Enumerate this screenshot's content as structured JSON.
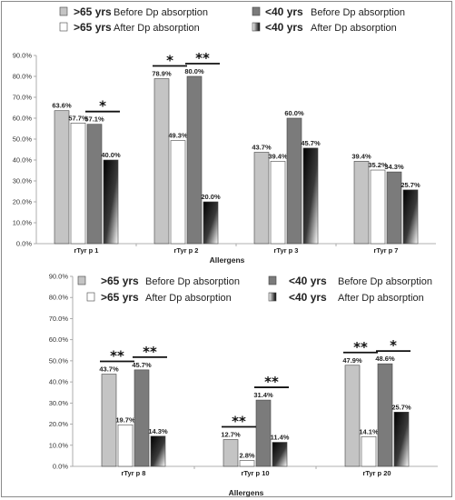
{
  "chart_data": [
    {
      "type": "bar",
      "categories": [
        "rTyr p 1",
        "rTyr p 2",
        "rTyr p 3",
        "rTyr p 7"
      ],
      "series": [
        {
          "name": "Before Dp absorption",
          "group": ">65 yrs",
          "values": [
            63.6,
            78.9,
            43.7,
            39.4
          ],
          "labels": [
            "63.6%",
            "78.9%",
            "43.7%",
            "39.4%"
          ]
        },
        {
          "name": "After Dp absorption",
          "group": ">65 yrs",
          "values": [
            57.7,
            49.3,
            39.4,
            35.2
          ],
          "labels": [
            "57.7%",
            "49.3%",
            "39.4%",
            "35.2%"
          ]
        },
        {
          "name": "Before Dp absorption",
          "group": "<40 yrs",
          "values": [
            57.1,
            80.0,
            60.0,
            34.3
          ],
          "labels": [
            "57.1%",
            "80.0%",
            "60.0%",
            "34.3%"
          ]
        },
        {
          "name": "After Dp absorption",
          "group": "<40 yrs",
          "values": [
            40.0,
            20.0,
            45.7,
            25.7
          ],
          "labels": [
            "40.0%",
            "20.0%",
            "45.7%",
            "25.7%"
          ]
        }
      ],
      "xlabel": "Allergens",
      "ylabel": "",
      "ylim": [
        0,
        90
      ],
      "yticks": [
        "0.0%",
        "10.0%",
        "20.0%",
        "30.0%",
        "40.0%",
        "50.0%",
        "60.0%",
        "70.0%",
        "80.0%",
        "90.0%"
      ],
      "grid": false,
      "legend": "top",
      "significance": [
        {
          "category_index": 0,
          "from_series": 2,
          "to_series": 3,
          "stars": "*"
        },
        {
          "category_index": 1,
          "from_series": 0,
          "to_series": 1,
          "stars": "*"
        },
        {
          "category_index": 1,
          "from_series": 2,
          "to_series": 3,
          "stars": "**"
        }
      ]
    },
    {
      "type": "bar",
      "categories": [
        "rTyr p 8",
        "rTyr p 10",
        "rTyr p 20"
      ],
      "series": [
        {
          "name": "Before Dp absorption",
          "group": ">65 yrs",
          "values": [
            43.7,
            12.7,
            47.9
          ],
          "labels": [
            "43.7%",
            "12.7%",
            "47.9%"
          ]
        },
        {
          "name": "After Dp absorption",
          "group": ">65 yrs",
          "values": [
            19.7,
            2.8,
            14.1
          ],
          "labels": [
            "19.7%",
            "2.8%",
            "14.1%"
          ]
        },
        {
          "name": "Before Dp absorption",
          "group": "<40 yrs",
          "values": [
            45.7,
            31.4,
            48.6
          ],
          "labels": [
            "45.7%",
            "31.4%",
            "48.6%"
          ]
        },
        {
          "name": "After Dp absorption",
          "group": "<40 yrs",
          "values": [
            14.3,
            11.4,
            25.7
          ],
          "labels": [
            "14.3%",
            "11.4%",
            "25.7%"
          ]
        }
      ],
      "xlabel": "Allergens",
      "ylabel": "",
      "ylim": [
        0,
        90
      ],
      "yticks": [
        "0.0%",
        "10.0%",
        "20.0%",
        "30.0%",
        "40.0%",
        "50.0%",
        "60.0%",
        "70.0%",
        "80.0%",
        "90.0%"
      ],
      "grid": false,
      "legend": "top",
      "significance": [
        {
          "category_index": 0,
          "from_series": 0,
          "to_series": 1,
          "stars": "**"
        },
        {
          "category_index": 0,
          "from_series": 2,
          "to_series": 3,
          "stars": "**"
        },
        {
          "category_index": 1,
          "from_series": 0,
          "to_series": 1,
          "stars": "**"
        },
        {
          "category_index": 1,
          "from_series": 2,
          "to_series": 3,
          "stars": "**"
        },
        {
          "category_index": 2,
          "from_series": 0,
          "to_series": 1,
          "stars": "**"
        },
        {
          "category_index": 2,
          "from_series": 2,
          "to_series": 3,
          "stars": "*"
        }
      ]
    }
  ],
  "legends": [
    {
      "items": [
        {
          "group": ">65 yrs",
          "label": "Before Dp absorption",
          "swatch": "light-gray"
        },
        {
          "group": "<40 yrs",
          "label": "Before Dp absorption",
          "swatch": "dark-gray"
        },
        {
          "group": ">65 yrs",
          "label": "After Dp absorption",
          "swatch": "white"
        },
        {
          "group": "<40 yrs",
          "label": "After Dp absorption",
          "swatch": "gradient-black-white"
        }
      ]
    },
    {
      "items": [
        {
          "group": ">65 yrs",
          "label": "Before Dp absorption",
          "swatch": "light-gray"
        },
        {
          "group": "<40 yrs",
          "label": "Before Dp absorption",
          "swatch": "dark-gray"
        },
        {
          "group": ">65 yrs",
          "label": "After Dp absorption",
          "swatch": "white"
        },
        {
          "group": "<40 yrs",
          "label": "After Dp absorption",
          "swatch": "gradient-black-white"
        }
      ]
    }
  ],
  "colors": {
    "light_gray": "#c4c4c4",
    "dark_gray": "#7b7b7b",
    "white": "#ffffff",
    "gradient_dark": "#000000",
    "gradient_light": "#ffffff",
    "outline": "#444444",
    "axis": "#999999"
  }
}
